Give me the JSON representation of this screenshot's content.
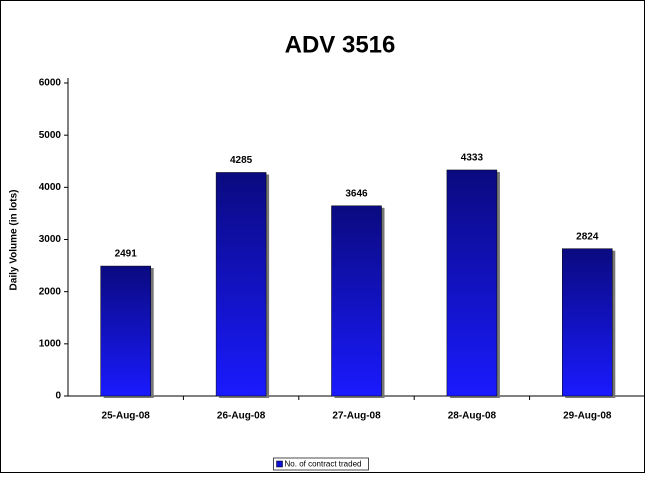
{
  "chart_data": {
    "type": "bar",
    "title": "ADV 3516",
    "y_label": "Daily Volume (in lots)",
    "categories": [
      "25-Aug-08",
      "26-Aug-08",
      "27-Aug-08",
      "28-Aug-08",
      "29-Aug-08"
    ],
    "series": [
      {
        "name": "No. of contract traded",
        "color": "#1010d0",
        "values": [
          2491,
          4285,
          3646,
          4333,
          2824
        ]
      }
    ],
    "ylim": [
      0,
      6000
    ],
    "yticks": [
      0,
      1000,
      2000,
      3000,
      4000,
      5000,
      6000
    ],
    "legend": "bottom"
  }
}
